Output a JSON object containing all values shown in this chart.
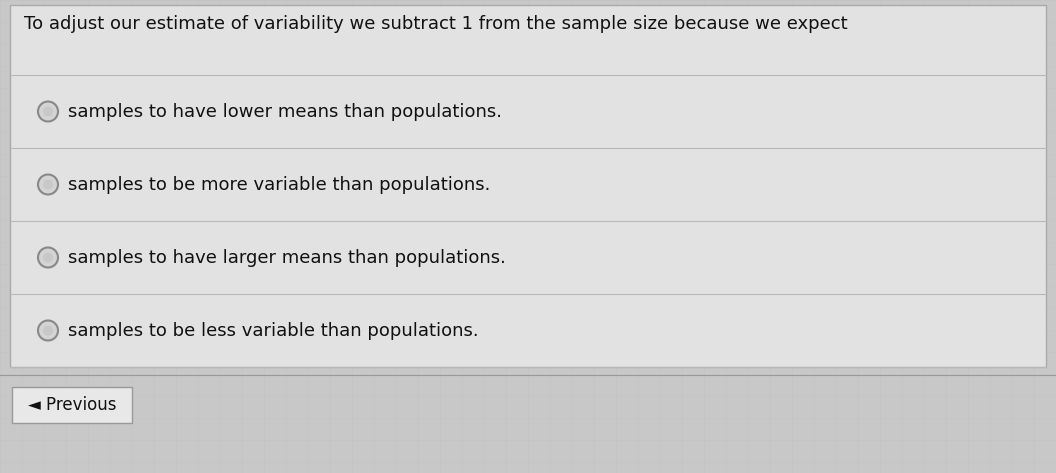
{
  "title": "To adjust our estimate of variability we subtract 1 from the sample size because we expect",
  "options": [
    "samples to have lower means than populations.",
    "samples to be more variable than populations.",
    "samples to have larger means than populations.",
    "samples to be less variable than populations."
  ],
  "bg_color": "#c8c8c8",
  "main_box_bg": "#e2e2e2",
  "main_box_border": "#aaaaaa",
  "option_row_bg": "#e2e2e2",
  "separator_color": "#b8b8b8",
  "text_color": "#111111",
  "title_fontsize": 13.0,
  "option_fontsize": 13.0,
  "radio_outer_color": "#888888",
  "radio_inner_color": "#d4d4d4",
  "prev_button_text": "◄ Previous",
  "prev_button_bg": "#e8e8e8",
  "prev_button_border": "#999999",
  "grid_line_color": "#bbbbbb"
}
